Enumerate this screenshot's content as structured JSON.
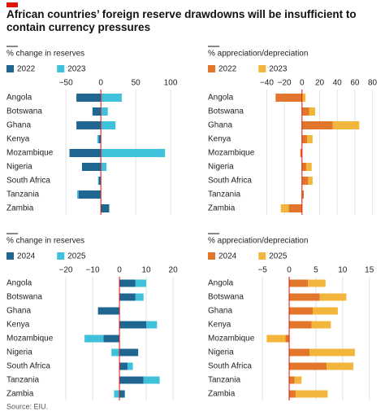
{
  "title": "African countries’ foreign reserve drawdowns will be insufficient to contain currency pressures",
  "source": "Source: EIU.",
  "chart_data": [
    {
      "type": "bar",
      "orientation": "horizontal",
      "stacked": true,
      "axis_label": "% change in reserves",
      "categories": [
        "Angola",
        "Botswana",
        "Ghana",
        "Kenya",
        "Mozambique",
        "Nigeria",
        "South Africa",
        "Tanzania",
        "Zambia"
      ],
      "series": [
        {
          "name": "2022",
          "color": "#1f6791",
          "values": [
            -35,
            -12,
            -35,
            -3,
            -45,
            -27,
            -3,
            -32,
            12
          ]
        },
        {
          "name": "2023",
          "color": "#3fc1dc",
          "values": [
            30,
            10,
            21,
            -2,
            92,
            8,
            -1,
            -2,
            0
          ]
        }
      ],
      "xlim": [
        -70,
        115
      ],
      "xticks": [
        {
          "value": -50,
          "label": "−50"
        },
        0,
        50,
        100
      ],
      "grid": true
    },
    {
      "type": "bar",
      "orientation": "horizontal",
      "stacked": true,
      "axis_label": "% appreciation/depreciation",
      "categories": [
        "Angola",
        "Botswana",
        "Ghana",
        "Kenya",
        "Mozambique",
        "Nigeria",
        "South Africa",
        "Tanzania",
        "Zambia"
      ],
      "series": [
        {
          "name": "2022",
          "color": "#e2762a",
          "values": [
            -30,
            8,
            35,
            6,
            -2,
            5,
            7,
            2,
            -15
          ]
        },
        {
          "name": "2023",
          "color": "#f3b63c",
          "values": [
            4,
            7,
            30,
            6,
            0,
            6,
            5,
            0,
            -9
          ]
        }
      ],
      "xlim": [
        -45,
        85
      ],
      "xticks": [
        {
          "value": -40,
          "label": "−40"
        },
        {
          "value": -20,
          "label": "−20"
        },
        0,
        20,
        40,
        60,
        80
      ],
      "grid": true
    },
    {
      "type": "bar",
      "orientation": "horizontal",
      "stacked": true,
      "axis_label": "% change in reserves",
      "categories": [
        "Angola",
        "Botswana",
        "Ghana",
        "Kenya",
        "Mozambique",
        "Nigeria",
        "South Africa",
        "Tanzania",
        "Zambia"
      ],
      "series": [
        {
          "name": "2024",
          "color": "#1f6791",
          "values": [
            6,
            6,
            -8,
            10,
            -6,
            7,
            3,
            9,
            2
          ]
        },
        {
          "name": "2025",
          "color": "#3fc1dc",
          "values": [
            4,
            3,
            0,
            4,
            -7,
            -3,
            2,
            6,
            -2
          ]
        }
      ],
      "xlim": [
        -25,
        23
      ],
      "xticks": [
        {
          "value": -20,
          "label": "−20"
        },
        {
          "value": -10,
          "label": "−10"
        },
        0,
        10,
        20
      ],
      "grid": true
    },
    {
      "type": "bar",
      "orientation": "horizontal",
      "stacked": true,
      "axis_label": "% appreciation/depreciation",
      "categories": [
        "Angola",
        "Botswana",
        "Ghana",
        "Kenya",
        "Mozambique",
        "Nigeria",
        "South Africa",
        "Tanzania",
        "Zambia"
      ],
      "series": [
        {
          "name": "2024",
          "color": "#e2762a",
          "values": [
            3.5,
            5.7,
            4.4,
            4.2,
            -0.7,
            3.8,
            7,
            1,
            1.2
          ]
        },
        {
          "name": "2025",
          "color": "#f3b63c",
          "values": [
            3.3,
            5,
            4.7,
            3.6,
            -3.5,
            8.5,
            5,
            1.3,
            6
          ]
        }
      ],
      "xlim": [
        -7,
        15.5
      ],
      "xticks": [
        {
          "value": -5,
          "label": "−5"
        },
        0,
        5,
        10,
        15
      ],
      "grid": true
    }
  ]
}
